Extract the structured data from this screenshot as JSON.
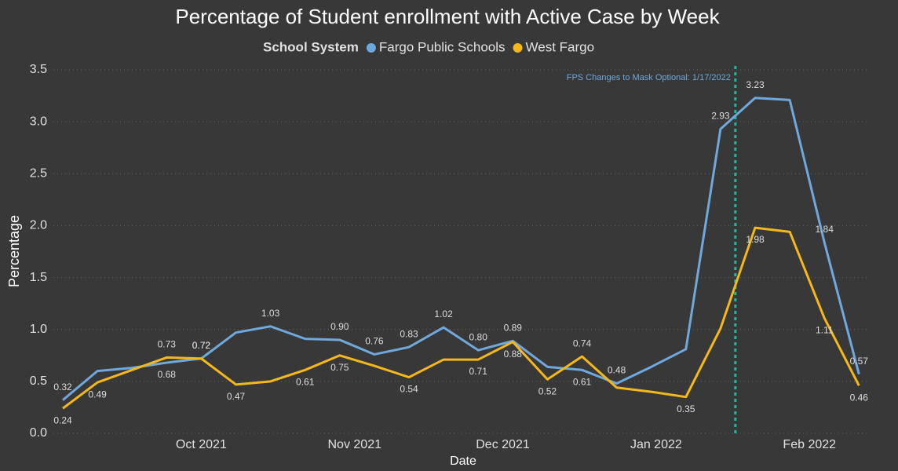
{
  "chart_data": {
    "type": "line",
    "title": "Percentage of Student enrollment with Active Case by Week",
    "legend_title": "School System",
    "x_label": "Date",
    "y_label": "Percentage",
    "categories": [
      null,
      null,
      null,
      null,
      null,
      null,
      null,
      null,
      null,
      null,
      null,
      null,
      null,
      null,
      null,
      null,
      null,
      null,
      null,
      null,
      null,
      null,
      null,
      null
    ],
    "xticks": [
      {
        "value": 4,
        "label": "Oct 2021"
      },
      {
        "value": 8.43,
        "label": "Nov 2021"
      },
      {
        "value": 12.71,
        "label": "Dec 2021"
      },
      {
        "value": 17.14,
        "label": "Jan 2022"
      },
      {
        "value": 21.57,
        "label": "Feb 2022"
      }
    ],
    "ylim": [
      0,
      3.5
    ],
    "yticks": [
      {
        "value": 0,
        "label": "0.0"
      },
      0.5,
      {
        "value": 1,
        "label": "1.0"
      },
      1.5,
      {
        "value": 2,
        "label": "2.0"
      },
      2.5,
      {
        "value": 3,
        "label": "3.0"
      },
      3.5
    ],
    "grid": true,
    "series": [
      {
        "name": "Fargo Public Schools",
        "color": "#6fa8dc",
        "values": [
          0.32,
          0.6,
          0.63,
          0.68,
          0.72,
          0.97,
          1.03,
          0.91,
          0.9,
          0.76,
          0.83,
          1.02,
          0.8,
          0.89,
          0.64,
          0.61,
          0.48,
          0.64,
          0.81,
          2.93,
          3.23,
          3.21,
          1.84,
          0.57
        ],
        "value_labels": [
          "0.32",
          null,
          null,
          "0.68",
          "0.72",
          null,
          "1.03",
          null,
          "0.90",
          "0.76",
          "0.83",
          "1.02",
          "0.80",
          "0.89",
          null,
          "0.61",
          "0.48",
          null,
          null,
          "2.93",
          "3.23",
          null,
          "1.84",
          "0.57"
        ]
      },
      {
        "name": "West Fargo",
        "color": "#f4b81c",
        "values": [
          0.24,
          0.49,
          0.61,
          0.73,
          0.72,
          0.47,
          0.5,
          0.61,
          0.75,
          0.65,
          0.54,
          0.71,
          0.71,
          0.88,
          0.52,
          0.74,
          0.44,
          0.4,
          0.35,
          1.01,
          1.98,
          1.94,
          1.11,
          0.46
        ],
        "value_labels": [
          "0.24",
          "0.49",
          null,
          "0.73",
          "0.72",
          "0.47",
          null,
          "0.61",
          "0.75",
          null,
          "0.54",
          null,
          "0.71",
          "0.88",
          "0.52",
          "0.74",
          null,
          null,
          "0.35",
          null,
          "1.98",
          null,
          "1.11",
          "0.46"
        ]
      }
    ],
    "annotation": {
      "text": "FPS Changes to Mask Optional: 1/17/2022",
      "x": 19.43,
      "color": "#6fa8dc",
      "line_color": "#1abc9c"
    }
  }
}
